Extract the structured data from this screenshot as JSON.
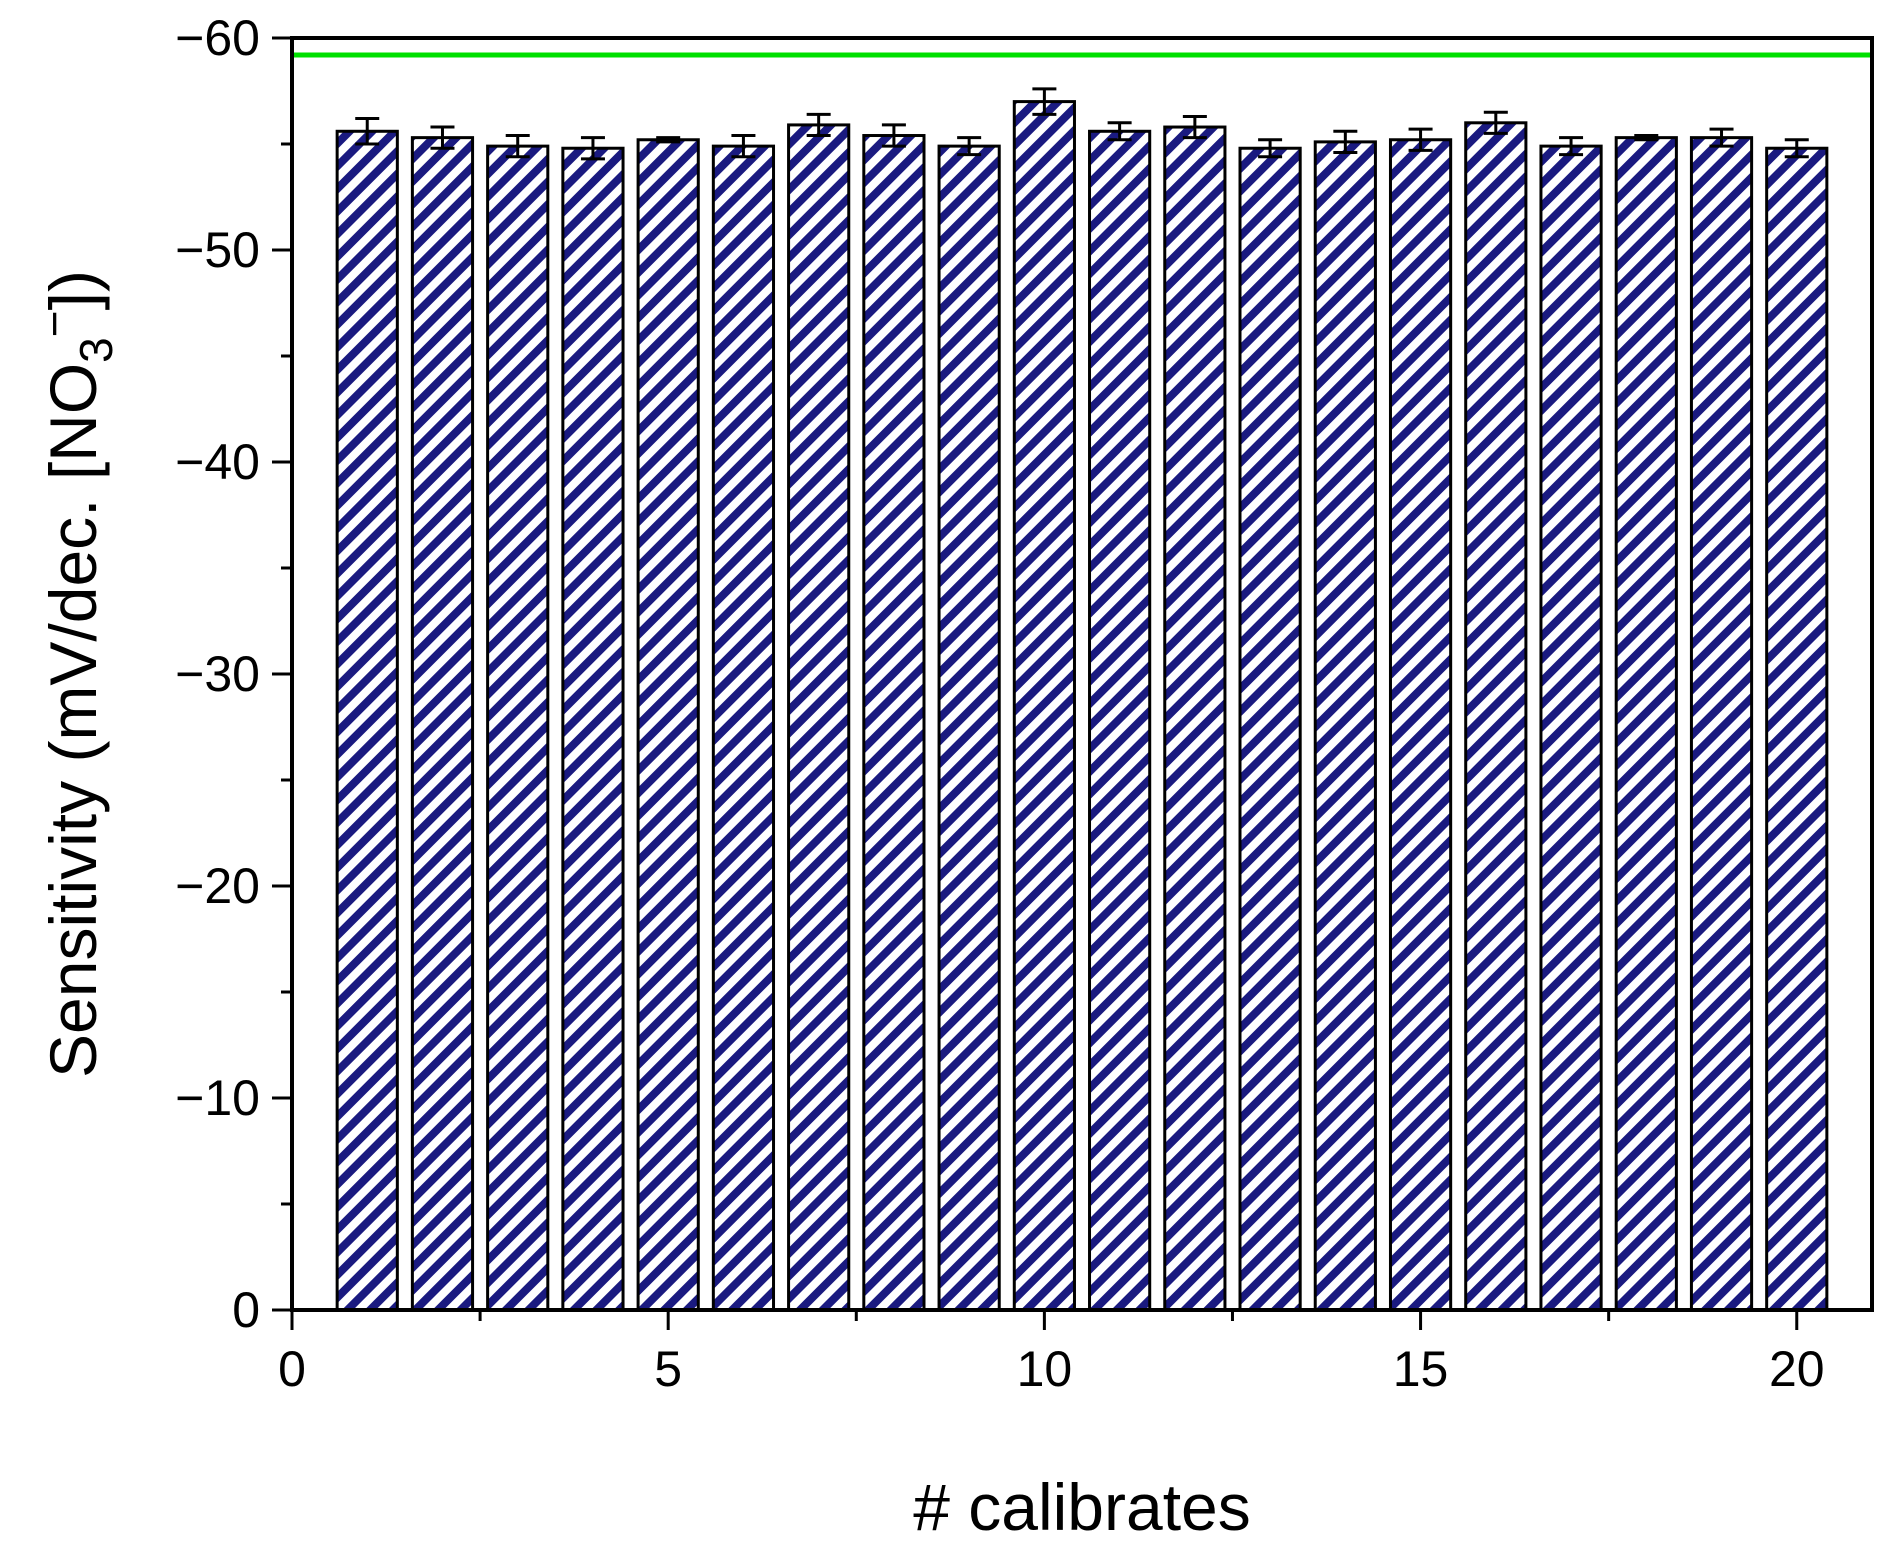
{
  "chart_data": {
    "type": "bar",
    "title": "",
    "xlabel": "# calibrates",
    "ylabel": {
      "prefix": "Sensitivity (mV/dec. [NO",
      "subscript": "3",
      "superscript": "−",
      "suffix": "])"
    },
    "x": [
      1,
      2,
      3,
      4,
      5,
      6,
      7,
      8,
      9,
      10,
      11,
      12,
      13,
      14,
      15,
      16,
      17,
      18,
      19,
      20
    ],
    "values": [
      -55.6,
      -55.3,
      -54.9,
      -54.8,
      -55.2,
      -54.9,
      -55.9,
      -55.4,
      -54.9,
      -57.0,
      -55.6,
      -55.8,
      -54.8,
      -55.1,
      -55.2,
      -56.0,
      -54.9,
      -55.3,
      -55.3,
      -54.8
    ],
    "errors": [
      0.6,
      0.5,
      0.5,
      0.5,
      0.1,
      0.5,
      0.5,
      0.5,
      0.4,
      0.6,
      0.4,
      0.5,
      0.4,
      0.5,
      0.5,
      0.5,
      0.4,
      0.1,
      0.4,
      0.4
    ],
    "xlim": [
      0,
      21
    ],
    "ylim": [
      0,
      -60
    ],
    "x_ticks": [
      "0",
      "5",
      "10",
      "15",
      "20"
    ],
    "y_ticks": [
      "0",
      "−10",
      "−20",
      "−30",
      "−40",
      "−50",
      "−60"
    ],
    "y_axis_inverted": true,
    "reference_line": {
      "value": -59.2,
      "color": "#00e000"
    },
    "bar_fill": "hatched",
    "hatch_color": "#1a1a80",
    "grid": false,
    "legend": false
  }
}
